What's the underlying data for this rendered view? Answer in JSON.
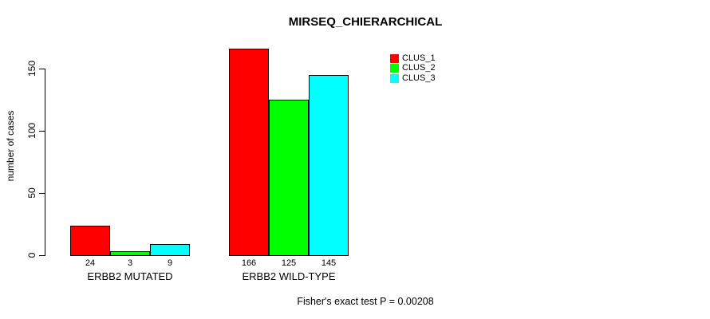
{
  "chart_data": {
    "type": "bar",
    "title": "MIRSEQ_CHIERARCHICAL",
    "xlabel": "",
    "ylabel": "number of cases",
    "categories": [
      "ERBB2 MUTATED",
      "ERBB2 WILD-TYPE"
    ],
    "series": [
      {
        "name": "CLUS_1",
        "color": "#ff0000",
        "values": [
          24,
          166
        ]
      },
      {
        "name": "CLUS_2",
        "color": "#00ff00",
        "values": [
          3,
          125
        ]
      },
      {
        "name": "CLUS_3",
        "color": "#00ffff",
        "values": [
          9,
          145
        ]
      }
    ],
    "bar_value_labels": [
      [
        "24",
        "3",
        "9"
      ],
      [
        "166",
        "125",
        "145"
      ]
    ],
    "yticks": [
      0,
      50,
      100,
      150
    ],
    "ylim": [
      0,
      150
    ],
    "grid": false,
    "legend_position": "top-right",
    "legend_entries": [
      "CLUS_1",
      "CLUS_2",
      "CLUS_3"
    ],
    "annotation": "Fisher's exact test P = 0.00208"
  },
  "colors": {
    "background": "#ffffff",
    "text": "#000000",
    "axis": "#000000",
    "bar_border": "#000000",
    "clus_1": "#ff0000",
    "clus_2": "#00ff00",
    "clus_3": "#00ffff"
  }
}
